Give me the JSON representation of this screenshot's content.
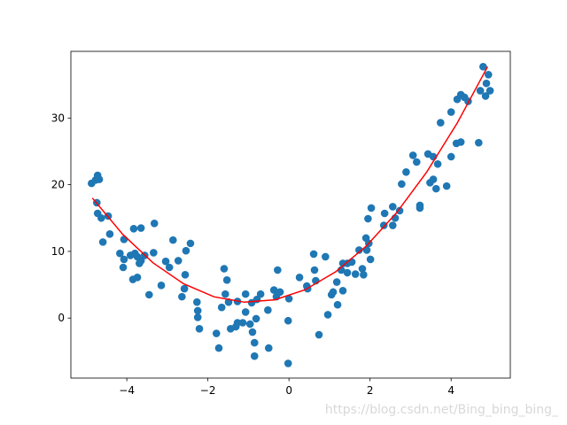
{
  "chart_data": {
    "type": "scatter",
    "color": "#1f77b4",
    "x": [
      -4.87,
      -4.77,
      -4.72,
      -4.68,
      -4.74,
      -4.72,
      -4.63,
      -4.46,
      -4.59,
      -4.42,
      -4.17,
      -4.07,
      -4.09,
      -4.07,
      -3.91,
      -3.83,
      -3.65,
      -3.8,
      -3.74,
      -3.65,
      -3.56,
      -3.69,
      -3.85,
      -3.74,
      -3.45,
      -3.34,
      -3.32,
      -3.15,
      -3.04,
      -2.95,
      -2.86,
      -2.73,
      -2.64,
      -2.58,
      -2.56,
      -2.54,
      -2.43,
      -2.27,
      -2.25,
      -2.25,
      -2.21,
      -1.79,
      -1.73,
      -1.66,
      -1.6,
      -1.57,
      -1.53,
      -1.49,
      -1.44,
      -1.31,
      -1.27,
      -1.27,
      -1.14,
      -1.07,
      -1.07,
      -0.96,
      -0.9,
      -0.85,
      -0.85,
      -0.81,
      -0.92,
      -0.79,
      -0.7,
      -0.52,
      -0.5,
      -0.37,
      -0.28,
      -0.31,
      -0.22,
      -0.02,
      -0.02,
      0,
      0.26,
      0.44,
      0.46,
      0.61,
      0.63,
      0.66,
      0.74,
      0.9,
      0.96,
      1.05,
      1.09,
      1.18,
      1.2,
      1.29,
      1.33,
      1.33,
      1.44,
      1.44,
      1.55,
      1.64,
      1.73,
      1.81,
      1.84,
      1.9,
      1.92,
      1.97,
      1.95,
      2.03,
      2.01,
      2.34,
      2.36,
      2.56,
      2.56,
      2.62,
      2.73,
      2.78,
      2.89,
      3.06,
      3.15,
      3.23,
      3.23,
      3.43,
      3.48,
      3.56,
      3.56,
      3.63,
      3.67,
      3.74,
      3.89,
      4.0,
      4.0,
      4.13,
      4.24,
      4.15,
      4.24,
      4.33,
      4.42,
      4.68,
      4.72,
      4.79,
      4.85,
      4.87,
      4.92,
      4.96
    ],
    "values": [
      20.2,
      20.7,
      21.4,
      20.8,
      17.3,
      15.7,
      15.0,
      15.3,
      11.4,
      12.6,
      9.7,
      11.8,
      7.6,
      8.8,
      9.4,
      13.4,
      13.5,
      9.7,
      9.2,
      8.6,
      9.4,
      8.2,
      5.8,
      6.1,
      3.5,
      9.8,
      14.2,
      4.9,
      8.5,
      7.6,
      11.7,
      8.6,
      3.2,
      4.4,
      6.5,
      10.1,
      11.2,
      2.4,
      1.1,
      0.1,
      -1.6,
      -2.3,
      -4.5,
      1.6,
      7.4,
      3.6,
      5.7,
      2.4,
      -1.6,
      -1.3,
      2.5,
      -0.7,
      -0.7,
      0.9,
      3.6,
      -0.9,
      -2.1,
      -3.7,
      -5.7,
      -0.1,
      2.3,
      2.8,
      3.6,
      1.2,
      -4.5,
      4.2,
      7.2,
      3.2,
      3.9,
      -0.4,
      -6.8,
      2.9,
      6.1,
      4.8,
      4.4,
      9.6,
      7.2,
      5.6,
      -2.5,
      9.2,
      0.5,
      3.5,
      3.9,
      5.4,
      2.0,
      7.2,
      8.2,
      4.1,
      8.2,
      6.8,
      8.4,
      6.6,
      10.2,
      7.4,
      6.5,
      12.0,
      10.2,
      11.2,
      14.9,
      16.5,
      8.8,
      13.9,
      15.7,
      16.7,
      13.9,
      15.0,
      16.1,
      20.1,
      21.9,
      24.4,
      23.4,
      16.5,
      16.9,
      24.6,
      20.3,
      24.2,
      20.8,
      19.4,
      23.1,
      29.3,
      19.8,
      24.2,
      30.9,
      26.2,
      26.4,
      32.8,
      33.5,
      33.1,
      32.5,
      26.3,
      34.1,
      37.7,
      33.3,
      35.2,
      36.5,
      34.1
    ],
    "fit": {
      "type": "line",
      "color": "#ff0000",
      "x": [
        -4.85,
        -4.1,
        -3.35,
        -2.6,
        -1.85,
        -1.1,
        -0.35,
        0.4,
        1.15,
        1.9,
        2.65,
        3.4,
        4.15,
        4.9
      ],
      "values": [
        18.0,
        12.55,
        8.27,
        5.15,
        3.19,
        2.38,
        2.74,
        4.25,
        6.93,
        10.76,
        15.76,
        21.92,
        29.24,
        37.7
      ]
    },
    "xlim": [
      -5.38,
      5.46
    ],
    "ylim": [
      -9.0,
      40.0
    ],
    "xticks": [
      {
        "value": -4,
        "label": "−4"
      },
      {
        "value": -2,
        "label": "−2"
      },
      0,
      2,
      4
    ],
    "yticks": [
      0,
      10,
      20,
      30
    ],
    "watermark": "https://blog.csdn.net/Bing_bing_bing_"
  }
}
